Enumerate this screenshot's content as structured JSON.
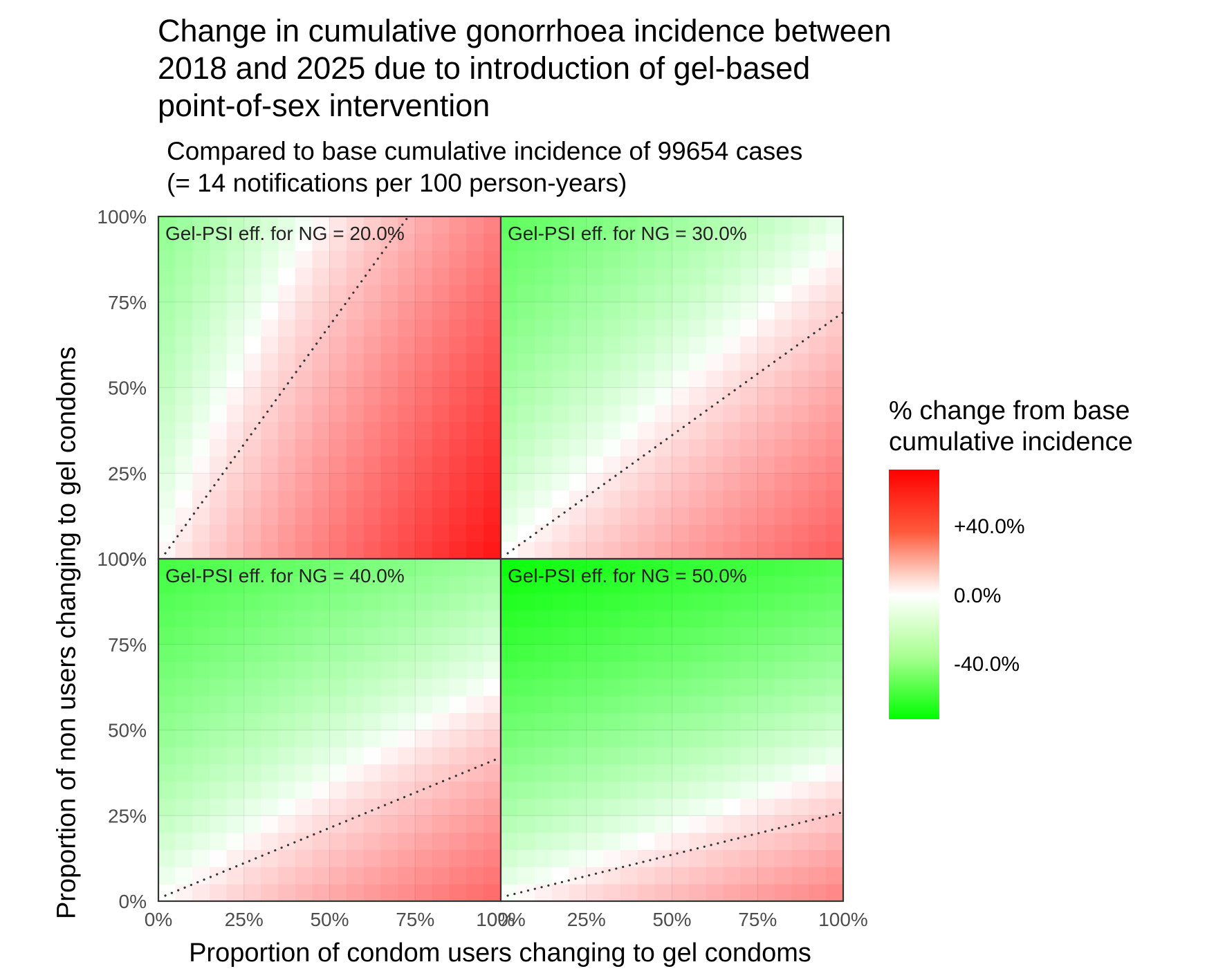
{
  "title": "Change in cumulative gonorrhoea incidence between\n2018 and 2025 due to introduction of gel-based\npoint-of-sex intervention",
  "subtitle": "Compared to base cumulative incidence of 99654 cases\n (= 14 notifications per 100 person-years)",
  "legend": {
    "title": "% change from base\ncumulative incidence",
    "labels": [
      "+40.0%",
      "0.0%",
      "-40.0%"
    ],
    "colors": {
      "high": "#ff0000",
      "mid": "#ffffff",
      "low": "#00ff00"
    }
  },
  "chart_data": {
    "type": "heatmap",
    "xlabel": "Proportion of condom users changing to gel condoms",
    "ylabel": "Proportion of non users changing to gel condoms",
    "x_ticks": [
      "0%",
      "25%",
      "50%",
      "75%",
      "100%"
    ],
    "y_ticks": [
      "0%",
      "25%",
      "50%",
      "75%",
      "100%"
    ],
    "xlim": [
      0,
      100
    ],
    "ylim": [
      0,
      100
    ],
    "grid": true,
    "fill_range": [
      -60,
      60
    ],
    "panels": [
      {
        "label": "Gel-PSI eff. for NG = 20.0%",
        "corners": {
          "x0y0": 0,
          "x100y0": 55,
          "x0y100": -22,
          "x100y100": 25
        },
        "zero_line": [
          [
            0,
            0
          ],
          [
            73,
            100
          ]
        ]
      },
      {
        "label": "Gel-PSI eff. for NG = 30.0%",
        "corners": {
          "x0y0": 0,
          "x100y0": 35,
          "x0y100": -35,
          "x100y100": -3
        },
        "zero_line": [
          [
            0,
            0
          ],
          [
            100,
            72
          ]
        ]
      },
      {
        "label": "Gel-PSI eff. for NG = 40.0%",
        "corners": {
          "x0y0": 0,
          "x100y0": 32,
          "x0y100": -42,
          "x100y100": -18
        },
        "zero_line": [
          [
            0,
            0
          ],
          [
            100,
            42
          ]
        ]
      },
      {
        "label": "Gel-PSI eff. for NG = 50.0%",
        "corners": {
          "x0y0": 0,
          "x100y0": 25,
          "x0y100": -58,
          "x100y100": -38
        },
        "zero_line": [
          [
            0,
            0
          ],
          [
            100,
            26
          ]
        ]
      }
    ]
  }
}
